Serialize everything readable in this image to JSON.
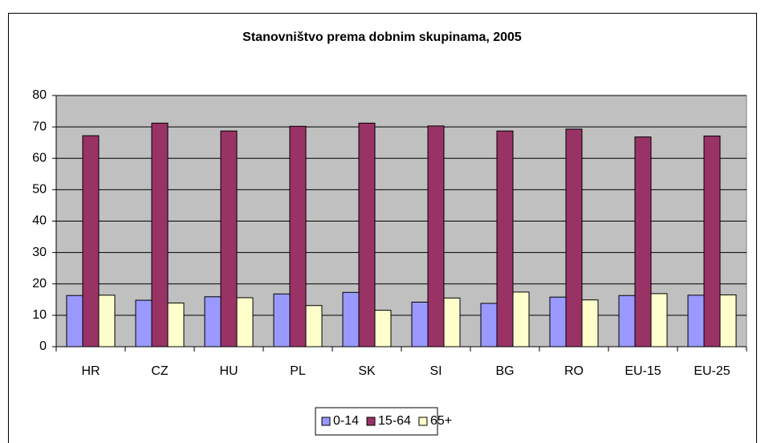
{
  "chart_data": {
    "type": "bar",
    "title": "Stanovništvo prema dobnim skupinama, 2005",
    "categories": [
      "HR",
      "CZ",
      "HU",
      "PL",
      "SK",
      "SI",
      "BG",
      "RO",
      "EU-15",
      "EU-25"
    ],
    "series": [
      {
        "name": "0-14",
        "color": "#9999ff",
        "values": [
          16.3,
          14.8,
          15.9,
          16.8,
          17.3,
          14.2,
          13.8,
          15.8,
          16.3,
          16.4
        ]
      },
      {
        "name": "15-64",
        "color": "#993366",
        "values": [
          67.2,
          71.2,
          68.7,
          70.2,
          71.2,
          70.3,
          68.7,
          69.3,
          66.8,
          67.1
        ]
      },
      {
        "name": "65+",
        "color": "#ffffcc",
        "values": [
          16.4,
          13.9,
          15.6,
          13.1,
          11.6,
          15.5,
          17.4,
          14.9,
          16.9,
          16.5
        ]
      }
    ],
    "ylim": [
      0,
      80
    ],
    "yticks": [
      0,
      10,
      20,
      30,
      40,
      50,
      60,
      70,
      80
    ],
    "grid": true,
    "plot_background": "#c0c0c0",
    "legend": "bottom"
  }
}
